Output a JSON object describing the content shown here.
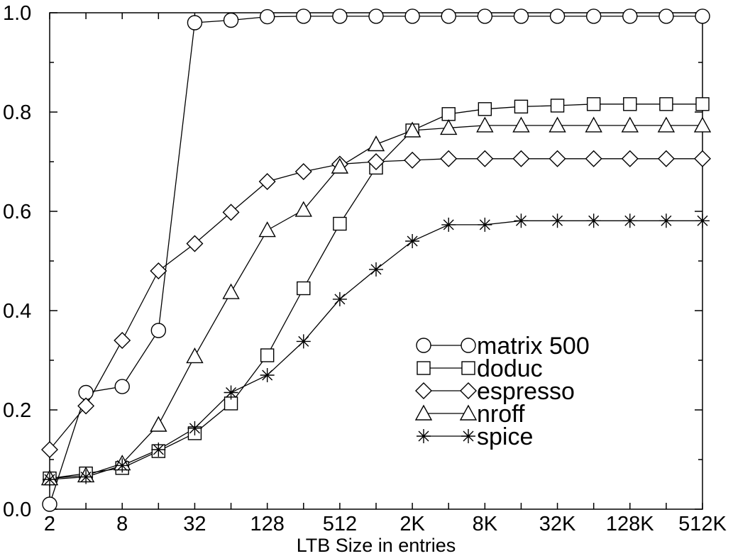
{
  "chart_data": {
    "type": "line",
    "title": "",
    "xlabel": "LTB Size in entries",
    "ylabel": "",
    "x_tick_labels": [
      "2",
      "",
      "8",
      "",
      "32",
      "",
      "128",
      "",
      "512",
      "",
      "2K",
      "",
      "8K",
      "",
      "32K",
      "",
      "128K",
      "",
      "512K"
    ],
    "ylim": [
      0.0,
      1.0
    ],
    "y_ticks": [
      0.0,
      0.2,
      0.4,
      0.6,
      0.8,
      1.0
    ],
    "y_tick_labels": [
      "0.0",
      "0.2",
      "0.4",
      "0.6",
      "0.8",
      "1.0"
    ],
    "grid": false,
    "legend_position": "lower-right",
    "series": [
      {
        "name": "matrix 500",
        "marker": "circle",
        "values": [
          0.01,
          0.235,
          0.247,
          0.36,
          0.98,
          0.985,
          0.992,
          0.993,
          0.993,
          0.993,
          0.993,
          0.993,
          0.993,
          0.993,
          0.993,
          0.993,
          0.993,
          0.993,
          0.993
        ]
      },
      {
        "name": "doduc",
        "marker": "square",
        "values": [
          0.062,
          0.072,
          0.083,
          0.117,
          0.153,
          0.213,
          0.31,
          0.445,
          0.575,
          0.688,
          0.763,
          0.796,
          0.806,
          0.811,
          0.813,
          0.816,
          0.816,
          0.816,
          0.816
        ]
      },
      {
        "name": "espresso",
        "marker": "diamond",
        "values": [
          0.12,
          0.208,
          0.34,
          0.48,
          0.535,
          0.598,
          0.66,
          0.68,
          0.695,
          0.7,
          0.703,
          0.706,
          0.706,
          0.706,
          0.706,
          0.706,
          0.706,
          0.706,
          0.706
        ]
      },
      {
        "name": "nroff",
        "marker": "triangle",
        "values": [
          0.062,
          0.068,
          0.092,
          0.17,
          0.308,
          0.437,
          0.562,
          0.603,
          0.69,
          0.735,
          0.763,
          0.768,
          0.773,
          0.773,
          0.773,
          0.773,
          0.773,
          0.773,
          0.773
        ]
      },
      {
        "name": "spice",
        "marker": "star",
        "values": [
          0.06,
          0.065,
          0.088,
          0.12,
          0.163,
          0.235,
          0.27,
          0.338,
          0.423,
          0.483,
          0.54,
          0.573,
          0.573,
          0.581,
          0.581,
          0.581,
          0.581,
          0.581,
          0.581
        ]
      }
    ]
  }
}
